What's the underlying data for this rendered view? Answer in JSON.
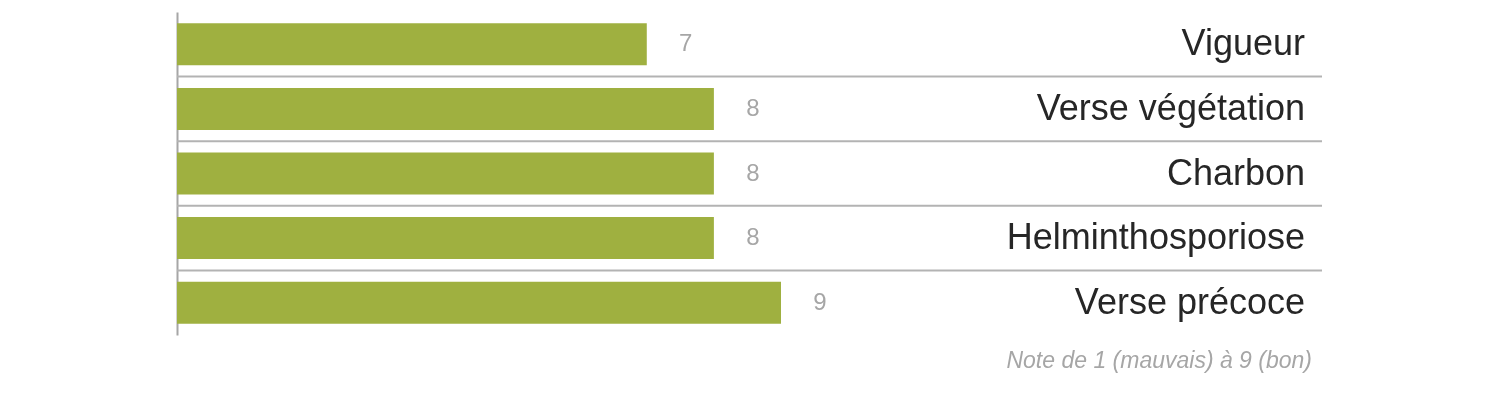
{
  "chart_data": {
    "type": "bar",
    "orientation": "horizontal",
    "categories": [
      "Vigueur",
      "Verse végétation",
      "Charbon",
      "Helminthosporiose",
      "Verse précoce"
    ],
    "series": [
      {
        "color": "#9fb040",
        "values": [
          7,
          8,
          8,
          8,
          9
        ]
      }
    ],
    "data_labels": true,
    "annotations": [
      "Note de 1 (mauvais) à 9 (bon)"
    ],
    "grid": "y",
    "tick_labels": "y"
  }
}
